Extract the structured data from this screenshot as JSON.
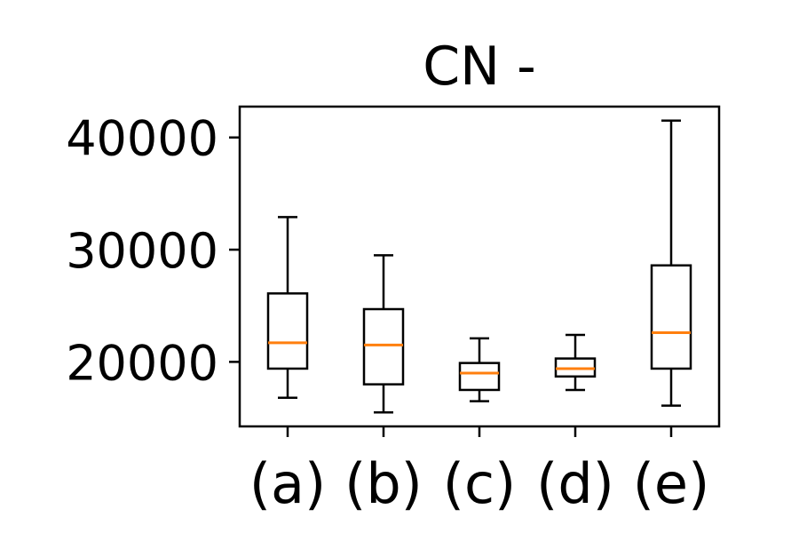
{
  "chart_data": {
    "type": "boxplot",
    "title": "CN -",
    "xlabel": "",
    "ylabel": "",
    "categories": [
      "(a)",
      "(b)",
      "(c)",
      "(d)",
      "(e)"
    ],
    "y_ticks": [
      20000,
      30000,
      40000
    ],
    "y_tick_labels": [
      "20000",
      "30000",
      "40000"
    ],
    "ylim": [
      14250,
      42750
    ],
    "grid": false,
    "legend": "none",
    "boxes": [
      {
        "category": "(a)",
        "whisker_low": 16800,
        "q1": 19400,
        "median": 21700,
        "q3": 26100,
        "whisker_high": 32900
      },
      {
        "category": "(b)",
        "whisker_low": 15500,
        "q1": 18000,
        "median": 21500,
        "q3": 24700,
        "whisker_high": 29500
      },
      {
        "category": "(c)",
        "whisker_low": 16500,
        "q1": 17500,
        "median": 19000,
        "q3": 19900,
        "whisker_high": 22100
      },
      {
        "category": "(d)",
        "whisker_low": 17500,
        "q1": 18700,
        "median": 19400,
        "q3": 20300,
        "whisker_high": 22400
      },
      {
        "category": "(e)",
        "whisker_low": 16100,
        "q1": 19400,
        "median": 22600,
        "q3": 28600,
        "whisker_high": 41500
      }
    ],
    "colors": {
      "box": "#000000",
      "median": "#ff7f0e",
      "axes": "#000000",
      "background": "#ffffff"
    }
  }
}
